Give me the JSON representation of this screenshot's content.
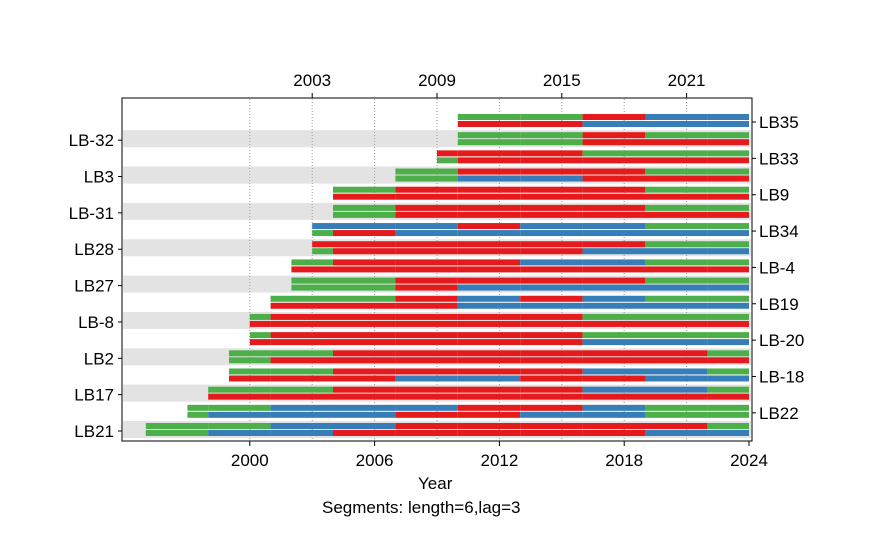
{
  "chart_data": {
    "type": "segment",
    "title": "",
    "xlabel": "Year",
    "caption": "Segments: length=6,lag=3",
    "xlim": [
      1994,
      2024
    ],
    "bottom_ticks": [
      2000,
      2006,
      2012,
      2018,
      2024
    ],
    "top_ticks": [
      2003,
      2009,
      2015,
      2021
    ],
    "grid": "vertical dotted",
    "colors": {
      "green": "#4daf4a",
      "red": "#e41a1c",
      "blue": "#377eb8",
      "band": "#e3e3e3"
    },
    "series": [
      {
        "name": "LB21",
        "side": "left",
        "start": 1995,
        "end": 2024,
        "segs": [
          [
            "G",
            "G"
          ],
          [
            "G",
            "B"
          ],
          [
            "B",
            "B"
          ],
          [
            "B",
            "R"
          ],
          [
            "R",
            "R"
          ],
          [
            "R",
            "R"
          ],
          [
            "R",
            "R"
          ],
          [
            "R",
            "R"
          ],
          [
            "R",
            "B"
          ],
          [
            "G",
            "B"
          ]
        ]
      },
      {
        "name": "LB22",
        "side": "right",
        "start": 1997,
        "end": 2024,
        "segs": [
          [
            "G",
            "G"
          ],
          [
            "G",
            "B"
          ],
          [
            "B",
            "B"
          ],
          [
            "B",
            "B"
          ],
          [
            "B",
            "R"
          ],
          [
            "R",
            "R"
          ],
          [
            "R",
            "B"
          ],
          [
            "B",
            "B"
          ],
          [
            "G",
            "G"
          ]
        ]
      },
      {
        "name": "LB17",
        "side": "left",
        "start": 1998,
        "end": 2024,
        "segs": [
          [
            "G",
            "R"
          ],
          [
            "G",
            "R"
          ],
          [
            "R",
            "R"
          ],
          [
            "R",
            "R"
          ],
          [
            "R",
            "R"
          ],
          [
            "R",
            "R"
          ],
          [
            "B",
            "R"
          ],
          [
            "B",
            "R"
          ],
          [
            "G",
            "R"
          ]
        ]
      },
      {
        "name": "LB-18",
        "side": "right",
        "start": 1999,
        "end": 2024,
        "segs": [
          [
            "G",
            "R"
          ],
          [
            "G",
            "R"
          ],
          [
            "R",
            "R"
          ],
          [
            "R",
            "B"
          ],
          [
            "R",
            "B"
          ],
          [
            "R",
            "R"
          ],
          [
            "B",
            "R"
          ],
          [
            "B",
            "B"
          ],
          [
            "G",
            "B"
          ]
        ]
      },
      {
        "name": "LB2",
        "side": "left",
        "start": 1999,
        "end": 2024,
        "segs": [
          [
            "G",
            "G"
          ],
          [
            "G",
            "R"
          ],
          [
            "R",
            "R"
          ],
          [
            "R",
            "R"
          ],
          [
            "R",
            "R"
          ],
          [
            "R",
            "R"
          ],
          [
            "R",
            "R"
          ],
          [
            "R",
            "R"
          ],
          [
            "G",
            "R"
          ]
        ]
      },
      {
        "name": "LB-20",
        "side": "right",
        "start": 2000,
        "end": 2024,
        "segs": [
          [
            "G",
            "R"
          ],
          [
            "R",
            "R"
          ],
          [
            "R",
            "R"
          ],
          [
            "R",
            "R"
          ],
          [
            "R",
            "R"
          ],
          [
            "R",
            "R"
          ],
          [
            "G",
            "B"
          ]
        ]
      },
      {
        "name": "LB-8",
        "side": "left",
        "start": 2000,
        "end": 2024,
        "segs": [
          [
            "G",
            "R"
          ],
          [
            "R",
            "R"
          ],
          [
            "R",
            "R"
          ],
          [
            "R",
            "R"
          ],
          [
            "R",
            "R"
          ],
          [
            "R",
            "R"
          ],
          [
            "G",
            "R"
          ]
        ]
      },
      {
        "name": "LB19",
        "side": "right",
        "start": 2001,
        "end": 2024,
        "segs": [
          [
            "G",
            "R"
          ],
          [
            "G",
            "R"
          ],
          [
            "R",
            "R"
          ],
          [
            "B",
            "B"
          ],
          [
            "R",
            "B"
          ],
          [
            "B",
            "B"
          ],
          [
            "G",
            "B"
          ]
        ]
      },
      {
        "name": "LB27",
        "side": "left",
        "start": 2002,
        "end": 2024,
        "segs": [
          [
            "G",
            "G"
          ],
          [
            "G",
            "G"
          ],
          [
            "R",
            "R"
          ],
          [
            "R",
            "B"
          ],
          [
            "R",
            "B"
          ],
          [
            "R",
            "B"
          ],
          [
            "G",
            "B"
          ]
        ]
      },
      {
        "name": "LB-4",
        "side": "right",
        "start": 2002,
        "end": 2024,
        "segs": [
          [
            "G",
            "R"
          ],
          [
            "R",
            "R"
          ],
          [
            "R",
            "R"
          ],
          [
            "R",
            "R"
          ],
          [
            "B",
            "R"
          ],
          [
            "B",
            "R"
          ],
          [
            "G",
            "R"
          ]
        ]
      },
      {
        "name": "LB28",
        "side": "left",
        "start": 2003,
        "end": 2024,
        "segs": [
          [
            "R",
            "G"
          ],
          [
            "R",
            "R"
          ],
          [
            "R",
            "R"
          ],
          [
            "R",
            "R"
          ],
          [
            "R",
            "R"
          ],
          [
            "R",
            "B"
          ],
          [
            "G",
            "B"
          ]
        ]
      },
      {
        "name": "LB34",
        "side": "right",
        "start": 2003,
        "end": 2024,
        "segs": [
          [
            "B",
            "G"
          ],
          [
            "B",
            "R"
          ],
          [
            "B",
            "B"
          ],
          [
            "R",
            "B"
          ],
          [
            "B",
            "B"
          ],
          [
            "B",
            "B"
          ],
          [
            "G",
            "B"
          ]
        ]
      },
      {
        "name": "LB-31",
        "side": "left",
        "start": 2004,
        "end": 2024,
        "segs": [
          [
            "G",
            "G"
          ],
          [
            "R",
            "R"
          ],
          [
            "R",
            "R"
          ],
          [
            "R",
            "R"
          ],
          [
            "R",
            "R"
          ],
          [
            "G",
            "R"
          ]
        ]
      },
      {
        "name": "LB9",
        "side": "right",
        "start": 2004,
        "end": 2024,
        "segs": [
          [
            "G",
            "R"
          ],
          [
            "R",
            "R"
          ],
          [
            "R",
            "R"
          ],
          [
            "R",
            "R"
          ],
          [
            "R",
            "R"
          ],
          [
            "G",
            "R"
          ]
        ]
      },
      {
        "name": "LB3",
        "side": "left",
        "start": 2007,
        "end": 2024,
        "segs": [
          [
            "G",
            "G"
          ],
          [
            "R",
            "B"
          ],
          [
            "R",
            "B"
          ],
          [
            "R",
            "R"
          ],
          [
            "G",
            "R"
          ]
        ]
      },
      {
        "name": "LB33",
        "side": "right",
        "start": 2009,
        "end": 2024,
        "segs": [
          [
            "R",
            "G"
          ],
          [
            "R",
            "R"
          ],
          [
            "R",
            "R"
          ],
          [
            "G",
            "R"
          ]
        ]
      },
      {
        "name": "LB-32",
        "side": "left",
        "start": 2010,
        "end": 2024,
        "segs": [
          [
            "G",
            "G"
          ],
          [
            "G",
            "G"
          ],
          [
            "R",
            "R"
          ],
          [
            "G",
            "R"
          ]
        ]
      },
      {
        "name": "LB35",
        "side": "right",
        "start": 2010,
        "end": 2024,
        "segs": [
          [
            "G",
            "R"
          ],
          [
            "G",
            "R"
          ],
          [
            "R",
            "B"
          ],
          [
            "B",
            "B"
          ]
        ]
      }
    ]
  }
}
